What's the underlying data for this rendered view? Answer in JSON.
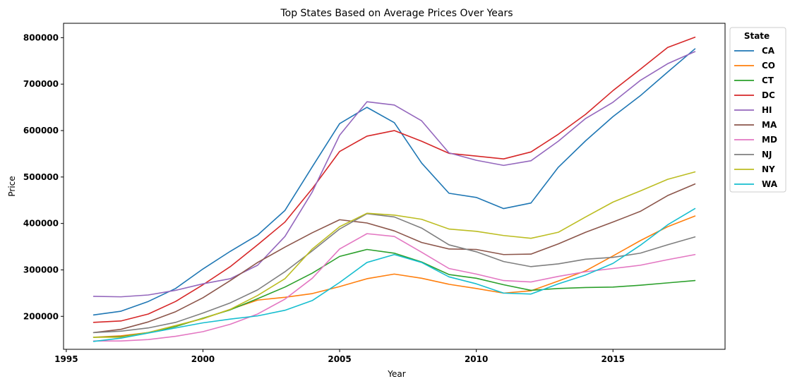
{
  "chart_data": {
    "type": "line",
    "title": "Top States Based on Average Prices Over Years",
    "xlabel": "Year",
    "ylabel": "Price",
    "xlim": [
      1994.9,
      2019.1
    ],
    "ylim": [
      129000,
      831000
    ],
    "xticks": [
      1995,
      2000,
      2005,
      2010,
      2015
    ],
    "yticks": [
      200000,
      300000,
      400000,
      500000,
      600000,
      700000,
      800000
    ],
    "grid": false,
    "legend": {
      "title": "State",
      "placement": "outside-right-top"
    },
    "x": [
      1996,
      1997,
      1998,
      1999,
      2000,
      2001,
      2002,
      2003,
      2004,
      2005,
      2006,
      2007,
      2008,
      2009,
      2010,
      2011,
      2012,
      2013,
      2014,
      2015,
      2016,
      2017,
      2018
    ],
    "series": [
      {
        "name": "CA",
        "color": "#1f77b4",
        "values": [
          203000,
          211000,
          232000,
          260000,
          302000,
          340000,
          375000,
          428000,
          522000,
          615000,
          650000,
          617000,
          530000,
          465000,
          456000,
          432000,
          444000,
          521000,
          578000,
          630000,
          675000,
          726000,
          776000
        ]
      },
      {
        "name": "CO",
        "color": "#ff7f0e",
        "values": [
          155000,
          158000,
          165000,
          180000,
          195000,
          215000,
          235000,
          241000,
          249000,
          264000,
          281000,
          291000,
          282000,
          269000,
          260000,
          250000,
          255000,
          276000,
          298000,
          330000,
          363000,
          393000,
          416000
        ]
      },
      {
        "name": "CT",
        "color": "#2ca02c",
        "values": [
          155000,
          156000,
          165000,
          178000,
          196000,
          214000,
          238000,
          263000,
          293000,
          329000,
          344000,
          336000,
          317000,
          290000,
          282000,
          268000,
          256000,
          260000,
          262000,
          263000,
          267000,
          272000,
          277000
        ]
      },
      {
        "name": "DC",
        "color": "#d62728",
        "values": [
          187000,
          190000,
          205000,
          232000,
          268000,
          307000,
          354000,
          403000,
          475000,
          555000,
          588000,
          600000,
          577000,
          551000,
          545000,
          539000,
          554000,
          592000,
          635000,
          686000,
          732000,
          779000,
          801000
        ]
      },
      {
        "name": "HI",
        "color": "#9467bd",
        "values": [
          243000,
          242000,
          246000,
          256000,
          270000,
          281000,
          310000,
          372000,
          468000,
          590000,
          662000,
          655000,
          621000,
          552000,
          536000,
          525000,
          535000,
          577000,
          626000,
          661000,
          708000,
          744000,
          770000
        ]
      },
      {
        "name": "MA",
        "color": "#8c564b",
        "values": [
          165000,
          172000,
          188000,
          210000,
          240000,
          277000,
          316000,
          349000,
          380000,
          408000,
          401000,
          384000,
          359000,
          345000,
          344000,
          333000,
          334000,
          356000,
          381000,
          403000,
          426000,
          460000,
          485000
        ]
      },
      {
        "name": "MD",
        "color": "#e377c2",
        "values": [
          147000,
          147000,
          150000,
          157000,
          167000,
          183000,
          205000,
          237000,
          282000,
          345000,
          378000,
          372000,
          338000,
          303000,
          291000,
          277000,
          274000,
          286000,
          296000,
          303000,
          310000,
          322000,
          333000
        ]
      },
      {
        "name": "NJ",
        "color": "#7f7f7f",
        "values": [
          165000,
          168000,
          175000,
          187000,
          207000,
          229000,
          257000,
          296000,
          341000,
          388000,
          421000,
          414000,
          390000,
          354000,
          339000,
          318000,
          307000,
          313000,
          323000,
          327000,
          336000,
          354000,
          371000
        ]
      },
      {
        "name": "NY",
        "color": "#bcbd22",
        "values": [
          155000,
          155000,
          165000,
          180000,
          195000,
          215000,
          245000,
          281000,
          345000,
          393000,
          422000,
          418000,
          409000,
          388000,
          383000,
          374000,
          368000,
          381000,
          414000,
          446000,
          470000,
          495000,
          511000
        ]
      },
      {
        "name": "WA",
        "color": "#17becf",
        "values": [
          146000,
          153000,
          164000,
          175000,
          186000,
          194000,
          201000,
          213000,
          234000,
          273000,
          316000,
          333000,
          316000,
          285000,
          270000,
          250000,
          248000,
          270000,
          289000,
          314000,
          353000,
          397000,
          432000
        ]
      }
    ]
  }
}
